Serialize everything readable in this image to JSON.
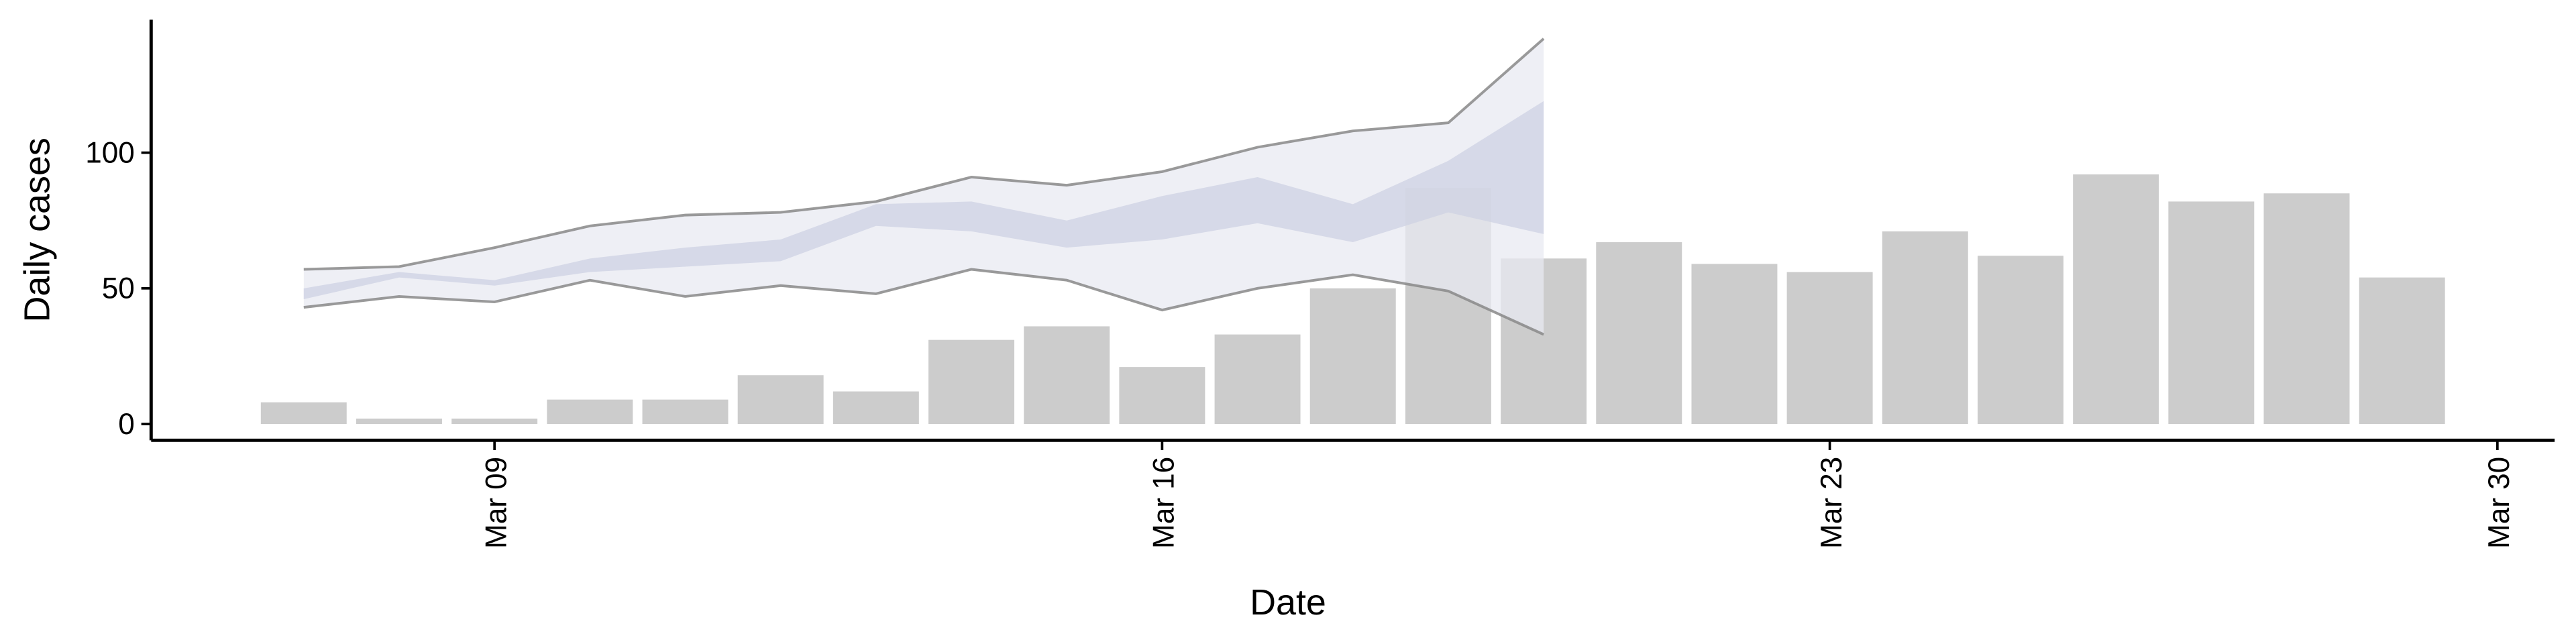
{
  "chart_data": {
    "type": "bar",
    "x_label": "Date",
    "y_label": "Daily cases",
    "x": [
      7,
      8,
      9,
      10,
      11,
      12,
      13,
      14,
      15,
      16,
      17,
      18,
      19,
      20,
      21,
      22,
      23,
      24,
      25,
      26,
      27,
      28,
      29
    ],
    "values": [
      8,
      2,
      2,
      9,
      9,
      18,
      12,
      31,
      36,
      21,
      33,
      50,
      87,
      61,
      67,
      59,
      56,
      71,
      62,
      92,
      82,
      85,
      54
    ],
    "color": "#cccccc",
    "bands": [
      {
        "x": [
          7,
          8,
          9,
          10,
          11,
          12,
          13,
          14,
          15,
          16,
          17,
          18,
          19,
          20
        ],
        "lower": [
          43,
          47,
          45,
          53,
          47,
          51,
          48,
          57,
          53,
          42,
          50,
          55,
          49,
          33
        ],
        "upper": [
          57,
          58,
          65,
          73,
          77,
          78,
          82,
          91,
          88,
          93,
          102,
          108,
          111,
          142
        ],
        "color": "#e8e9f1",
        "line_color": "#888888"
      },
      {
        "x": [
          7,
          8,
          9,
          10,
          11,
          12,
          13,
          14,
          15,
          16,
          17,
          18,
          19,
          20
        ],
        "lower": [
          46,
          54,
          51,
          56,
          58,
          60,
          73,
          71,
          65,
          68,
          74,
          67,
          78,
          70
        ],
        "upper": [
          50,
          56,
          53,
          61,
          65,
          68,
          81,
          82,
          75,
          84,
          91,
          81,
          97,
          119
        ],
        "color": "#cdd1e3"
      }
    ],
    "xlim": [
      5.4,
      30.6
    ],
    "xticks": [
      {
        "value": 9,
        "label": "Mar 09"
      },
      {
        "value": 16,
        "label": "Mar 16"
      },
      {
        "value": 23,
        "label": "Mar 23"
      },
      {
        "value": 30,
        "label": "Mar 30"
      }
    ],
    "ylim": [
      -6,
      149
    ],
    "yticks": [
      0,
      50,
      100
    ]
  }
}
